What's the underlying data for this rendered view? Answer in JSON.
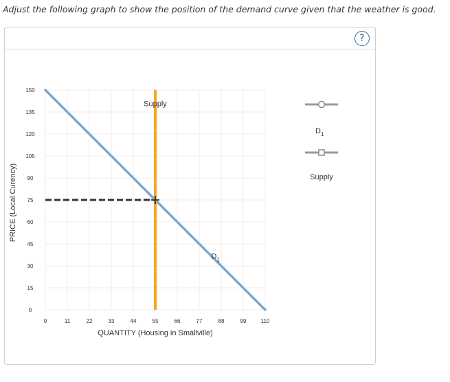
{
  "question": {
    "text": "Adjust the following graph to show the position of the demand curve given that the weather is good."
  },
  "help": {
    "symbol": "?"
  },
  "chart_data": {
    "type": "line",
    "xlabel": "QUANTITY (Housing in Smallville)",
    "ylabel": "PRICE (Local Curency)",
    "xlim": [
      0,
      110
    ],
    "ylim": [
      0,
      150
    ],
    "x_ticks": [
      0,
      11,
      22,
      33,
      44,
      55,
      66,
      77,
      88,
      99,
      110
    ],
    "y_ticks": [
      0,
      15,
      30,
      45,
      60,
      75,
      90,
      105,
      120,
      135,
      150
    ],
    "grid": true,
    "series": [
      {
        "name": "D1",
        "color": "#7fa7c9",
        "points": [
          [
            0,
            150
          ],
          [
            110,
            0
          ]
        ]
      },
      {
        "name": "Supply",
        "color": "#f5a623",
        "points": [
          [
            55,
            0
          ],
          [
            55,
            150
          ]
        ]
      }
    ],
    "annotations": {
      "equilibrium": {
        "x": 55,
        "y": 75
      },
      "price_guide": {
        "from_x": 0,
        "to_x": 55,
        "y": 75
      },
      "supply_label": "Supply",
      "demand_label_main": "D",
      "demand_label_sub": "1"
    }
  },
  "palette": {
    "tools": [
      {
        "name": "D",
        "sub": "1",
        "marker": "circle"
      },
      {
        "name": "Supply",
        "sub": "",
        "marker": "square"
      }
    ]
  }
}
